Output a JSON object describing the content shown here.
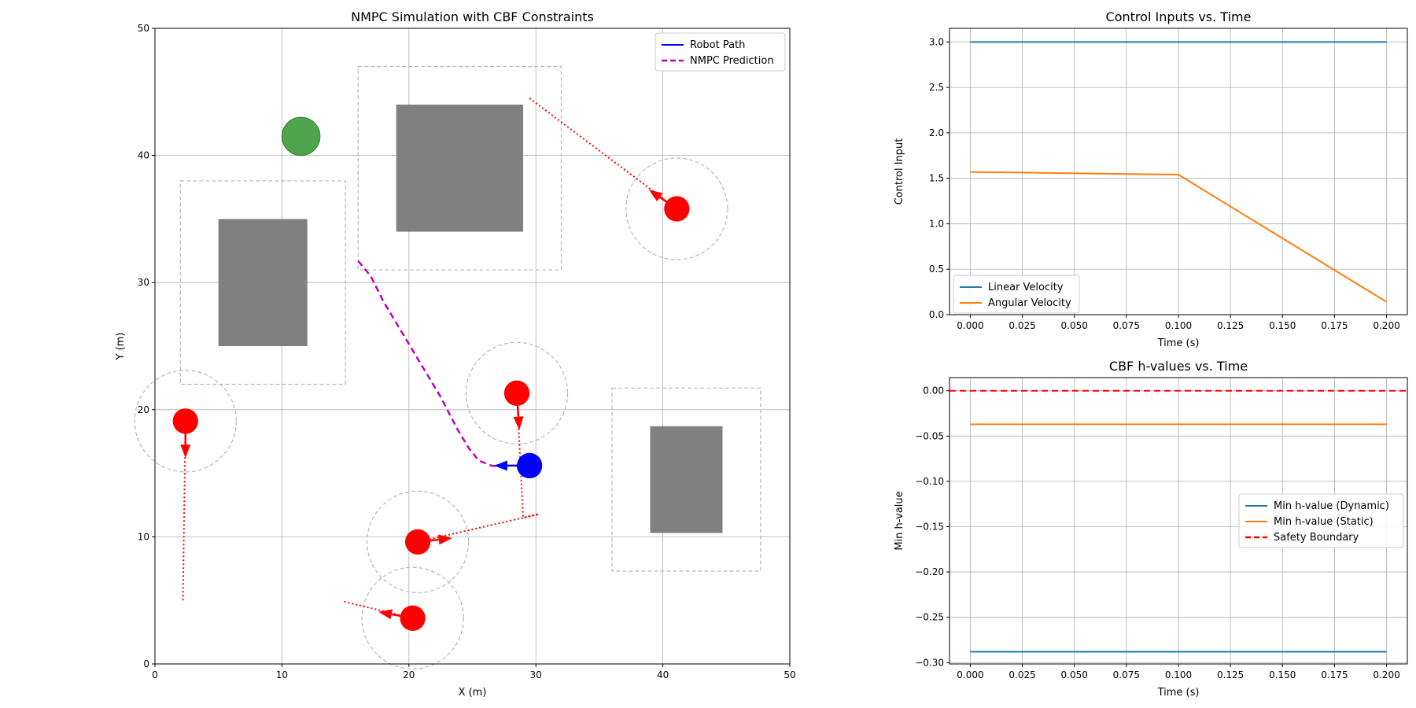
{
  "chart_data": [
    {
      "type": "scatter",
      "title": "NMPC Simulation with CBF Constraints",
      "xlabel": "X (m)",
      "ylabel": "Y (m)",
      "xlim": [
        0,
        50
      ],
      "ylim": [
        0,
        50
      ],
      "xticks": [
        0,
        10,
        20,
        30,
        40,
        50
      ],
      "yticks": [
        0,
        10,
        20,
        30,
        40,
        50
      ],
      "grid": true,
      "legend_position": "top-right",
      "series": [
        {
          "name": "Robot Path",
          "color": "#0000ff",
          "points": [
            [
              29.5,
              15.6
            ]
          ]
        },
        {
          "name": "NMPC Prediction",
          "color": "#bf00bf",
          "style": "dashed",
          "points": [
            [
              16.0,
              31.7
            ],
            [
              17.0,
              30.5
            ],
            [
              18.0,
              28.5
            ],
            [
              19.5,
              26.0
            ],
            [
              21.0,
              23.5
            ],
            [
              22.5,
              21.0
            ],
            [
              23.8,
              18.5
            ],
            [
              24.7,
              17.0
            ],
            [
              25.5,
              16.0
            ],
            [
              26.5,
              15.6
            ],
            [
              27.5,
              15.5
            ]
          ]
        }
      ],
      "robot": {
        "x": 29.5,
        "y": 15.6,
        "radius": 1.0,
        "heading": [
          -2.8,
          0.0
        ],
        "color": "#0000ff"
      },
      "goal": {
        "x": 11.5,
        "y": 41.5,
        "radius": 1.5,
        "color": "#3a9a3a"
      },
      "static_obstacles": [
        {
          "x0": 5,
          "y0": 25,
          "x1": 12,
          "y1": 35,
          "safe_x0": 2,
          "safe_y0": 22,
          "safe_x1": 15,
          "safe_y1": 38
        },
        {
          "x0": 19,
          "y0": 34,
          "x1": 29,
          "y1": 44,
          "safe_x0": 16,
          "safe_y0": 31,
          "safe_x1": 32,
          "safe_y1": 47
        },
        {
          "x0": 39,
          "y0": 10.3,
          "x1": 44.7,
          "y1": 18.7,
          "safe_x0": 36,
          "safe_y0": 7.3,
          "safe_x1": 47.7,
          "safe_y1": 21.7
        }
      ],
      "dynamic_obstacles": [
        {
          "x": 41.1,
          "y": 35.8,
          "radius": 1.0,
          "safety_radius": 4.0,
          "velocity": [
            -2.2,
            1.5
          ],
          "trail": [
            [
              29.5,
              44.5
            ],
            [
              41.1,
              35.8
            ]
          ]
        },
        {
          "x": 2.4,
          "y": 19.1,
          "radius": 1.0,
          "safety_radius": 4.0,
          "velocity": [
            0.0,
            -2.9
          ],
          "trail": [
            [
              2.2,
              5.0
            ],
            [
              2.4,
              19.1
            ]
          ]
        },
        {
          "x": 28.5,
          "y": 21.3,
          "radius": 1.0,
          "safety_radius": 4.0,
          "velocity": [
            0.2,
            -2.9
          ],
          "trail": [
            [
              28.5,
              21.3
            ],
            [
              29.0,
              11.5
            ],
            [
              30.3,
              11.8
            ]
          ]
        },
        {
          "x": 20.7,
          "y": 9.6,
          "radius": 1.0,
          "safety_radius": 4.0,
          "velocity": [
            2.7,
            0.3
          ],
          "trail": [
            [
              20.7,
              9.6
            ],
            [
              30.3,
              11.8
            ]
          ]
        },
        {
          "x": 20.3,
          "y": 3.6,
          "radius": 1.0,
          "safety_radius": 4.0,
          "velocity": [
            -2.7,
            0.5
          ],
          "trail": [
            [
              14.9,
              4.9
            ],
            [
              20.3,
              3.6
            ]
          ]
        }
      ]
    },
    {
      "type": "line",
      "title": "Control Inputs vs. Time",
      "xlabel": "Time (s)",
      "ylabel": "Control Input",
      "xlim": [
        -0.01,
        0.21
      ],
      "ylim": [
        0.0,
        3.15
      ],
      "xticks": [
        "0.000",
        "0.025",
        "0.050",
        "0.075",
        "0.100",
        "0.125",
        "0.150",
        "0.175",
        "0.200"
      ],
      "yticks": [
        "0.0",
        "0.5",
        "1.0",
        "1.5",
        "2.0",
        "2.5",
        "3.0"
      ],
      "grid": true,
      "legend_position": "lower-left",
      "x": [
        0.0,
        0.1,
        0.2
      ],
      "series": [
        {
          "name": "Linear Velocity",
          "color": "#1f77b4",
          "values": [
            3.0,
            3.0,
            3.0
          ]
        },
        {
          "name": "Angular Velocity",
          "color": "#ff7f0e",
          "values": [
            1.57,
            1.54,
            0.14
          ]
        }
      ]
    },
    {
      "type": "line",
      "title": "CBF h-values vs. Time",
      "xlabel": "Time (s)",
      "ylabel": "Min h-value",
      "xlim": [
        -0.01,
        0.21
      ],
      "ylim": [
        -0.3015,
        0.0145
      ],
      "xticks": [
        "0.000",
        "0.025",
        "0.050",
        "0.075",
        "0.100",
        "0.125",
        "0.150",
        "0.175",
        "0.200"
      ],
      "yticks": [
        "0.00",
        "−0.05",
        "−0.10",
        "−0.15",
        "−0.20",
        "−0.25",
        "−0.30"
      ],
      "grid": true,
      "legend_position": "center-right",
      "x": [
        0.0,
        0.1,
        0.2
      ],
      "series": [
        {
          "name": "Min h-value (Dynamic)",
          "color": "#1f77b4",
          "values": [
            -0.288,
            -0.288,
            -0.288
          ]
        },
        {
          "name": "Min h-value (Static)",
          "color": "#ff7f0e",
          "values": [
            -0.037,
            -0.037,
            -0.037
          ]
        },
        {
          "name": "Safety Boundary",
          "color": "#ff0000",
          "style": "dashed",
          "values": [
            0.0,
            0.0,
            0.0
          ]
        }
      ]
    }
  ]
}
